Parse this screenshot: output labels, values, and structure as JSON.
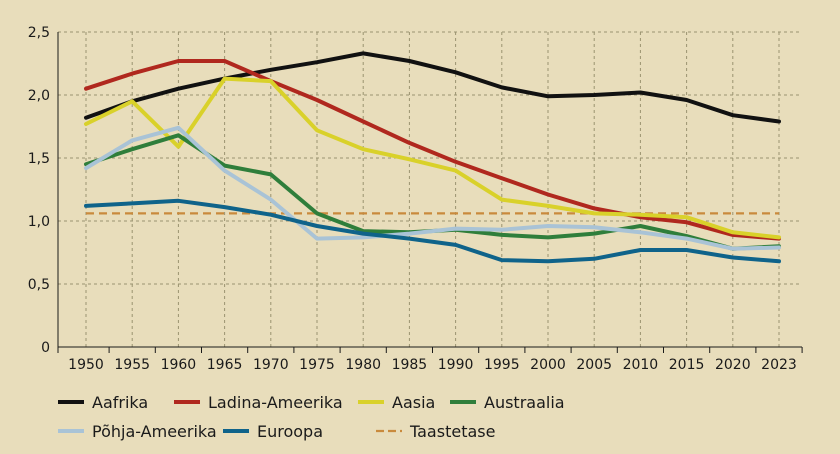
{
  "chart_data": {
    "type": "line",
    "x": [
      1950,
      1955,
      1960,
      1965,
      1970,
      1975,
      1980,
      1985,
      1990,
      1995,
      2000,
      2005,
      2010,
      2015,
      2020,
      2023
    ],
    "x_tick_labels": [
      "1950",
      "1955",
      "1960",
      "1965",
      "1970",
      "1975",
      "1980",
      "1985",
      "1990",
      "1995",
      "2000",
      "2005",
      "2010",
      "2015",
      "2020",
      "2023"
    ],
    "y_tick_labels": [
      "0",
      "0,5",
      "1,0",
      "1,5",
      "2,0",
      "2,5"
    ],
    "y_ticks": [
      0,
      0.5,
      1.0,
      1.5,
      2.0,
      2.5
    ],
    "ylim": [
      0,
      2.5
    ],
    "grid": true,
    "legend_position": "bottom",
    "series": [
      {
        "name": "Aafrika",
        "color": "#111111",
        "dashed": false,
        "values": [
          1.82,
          1.95,
          2.05,
          2.13,
          2.2,
          2.26,
          2.33,
          2.27,
          2.18,
          2.06,
          1.99,
          2.0,
          2.02,
          1.96,
          1.84,
          1.79
        ]
      },
      {
        "name": "Ladina-Ameerika",
        "color": "#b0281e",
        "dashed": false,
        "values": [
          2.05,
          2.17,
          2.27,
          2.27,
          2.11,
          1.96,
          1.79,
          1.62,
          1.47,
          1.34,
          1.21,
          1.1,
          1.03,
          0.99,
          0.89,
          0.86
        ]
      },
      {
        "name": "Aasia",
        "color": "#d9d12a",
        "dashed": false,
        "values": [
          1.77,
          1.95,
          1.59,
          2.13,
          2.11,
          1.72,
          1.57,
          1.49,
          1.4,
          1.17,
          1.12,
          1.06,
          1.05,
          1.03,
          0.91,
          0.87
        ]
      },
      {
        "name": "Austraalia",
        "color": "#2f7e3b",
        "dashed": false,
        "values": [
          1.45,
          1.57,
          1.68,
          1.44,
          1.37,
          1.06,
          0.92,
          0.91,
          0.93,
          0.89,
          0.87,
          0.9,
          0.96,
          0.88,
          0.78,
          0.8
        ]
      },
      {
        "name": "Põhja-Ameerika",
        "color": "#a9c3d6",
        "dashed": false,
        "values": [
          1.42,
          1.64,
          1.74,
          1.4,
          1.17,
          0.86,
          0.87,
          0.9,
          0.94,
          0.93,
          0.96,
          0.95,
          0.91,
          0.86,
          0.78,
          0.79
        ]
      },
      {
        "name": "Euroopa",
        "color": "#0f638a",
        "dashed": false,
        "values": [
          1.12,
          1.14,
          1.16,
          1.11,
          1.05,
          0.96,
          0.9,
          0.86,
          0.81,
          0.69,
          0.68,
          0.7,
          0.77,
          0.77,
          0.71,
          0.68
        ]
      },
      {
        "name": "Taastetase",
        "color": "#c98a3c",
        "dashed": true,
        "values": [
          1.06,
          1.06,
          1.06,
          1.06,
          1.06,
          1.06,
          1.06,
          1.06,
          1.06,
          1.06,
          1.06,
          1.06,
          1.06,
          1.06,
          1.06,
          1.06
        ]
      }
    ],
    "legend_rows": [
      [
        "Aafrika",
        "Ladina-Ameerika",
        "Aasia",
        "Austraalia"
      ],
      [
        "Põhja-Ameerika",
        "Euroopa",
        "Taastetase"
      ]
    ]
  }
}
